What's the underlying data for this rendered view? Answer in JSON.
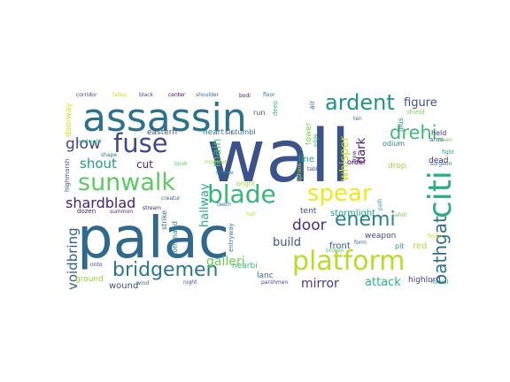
{
  "words": [
    {
      "text": "wall",
      "color": "#3b528b"
    },
    {
      "text": "palac",
      "color": "#31688e"
    },
    {
      "text": "assassin",
      "color": "#2c728e"
    },
    {
      "text": "platform",
      "color": "#b5de2b"
    },
    {
      "text": "citi",
      "color": "#28ae80"
    },
    {
      "text": "spear",
      "color": "#f3e51e"
    },
    {
      "text": "blade",
      "color": "#35b779"
    },
    {
      "text": "sunwalk",
      "color": "#5ec962"
    },
    {
      "text": "fuse",
      "color": "#3e4a89"
    },
    {
      "text": "bridgemen",
      "color": "#2a768e"
    },
    {
      "text": "ardent",
      "color": "#21918c"
    },
    {
      "text": "enemi",
      "color": "#26828e"
    },
    {
      "text": "drehi",
      "color": "#3fbc73"
    },
    {
      "text": "oathgat",
      "color": "#2e6f8e"
    },
    {
      "text": "door",
      "color": "#472c7a"
    },
    {
      "text": "glow",
      "color": "#414487"
    },
    {
      "text": "shout",
      "color": "#1f9e89"
    },
    {
      "text": "shardblad",
      "color": "#482173"
    },
    {
      "text": "voidbring",
      "color": "#33638d"
    },
    {
      "text": "mirror",
      "color": "#443983"
    },
    {
      "text": "galleri",
      "color": "#6ccd5a"
    },
    {
      "text": "build",
      "color": "#3a548c"
    },
    {
      "text": "attack",
      "color": "#2db27d"
    },
    {
      "text": "whisper",
      "color": "#c8e020"
    },
    {
      "text": "hallway",
      "color": "#25ac82"
    },
    {
      "text": "main",
      "color": "#4ac16d"
    },
    {
      "text": "dark",
      "color": "#481a6c"
    },
    {
      "text": "figure",
      "color": "#3b528b"
    },
    {
      "text": "cut",
      "color": "#482878"
    },
    {
      "text": "front",
      "color": "#38588c"
    },
    {
      "text": "red",
      "color": "#addc30"
    },
    {
      "text": "wound",
      "color": "#3d4e8a"
    },
    {
      "text": "stormlight",
      "color": "#1fa088"
    },
    {
      "text": "highlord",
      "color": "#433e85"
    },
    {
      "text": "eastern",
      "color": "#3a538b"
    },
    {
      "text": "heart",
      "color": "#27808e"
    },
    {
      "text": "sir",
      "color": "#453882"
    },
    {
      "text": "stumbl",
      "color": "#2f6c8e"
    },
    {
      "text": "line",
      "color": "#21a685"
    },
    {
      "text": "tent",
      "color": "#404688"
    },
    {
      "text": "drop",
      "color": "#9fda3a"
    },
    {
      "text": "order",
      "color": "#440154"
    },
    {
      "text": "weapon",
      "color": "#3e4989"
    },
    {
      "text": "pit",
      "color": "#20928c"
    },
    {
      "text": "dead",
      "color": "#472d7b"
    },
    {
      "text": "held",
      "color": "#453581"
    },
    {
      "text": "lanc",
      "color": "#31678e"
    },
    {
      "text": "ground",
      "color": "#90d743"
    },
    {
      "text": "nearbi",
      "color": "#3dbc74"
    },
    {
      "text": "doorway",
      "color": "#d8e219"
    },
    {
      "text": "tower",
      "color": "#7ad151"
    },
    {
      "text": "air",
      "color": "#2a778e"
    },
    {
      "text": "deep",
      "color": "#38b977"
    },
    {
      "text": "run",
      "color": "#3e4c8a"
    },
    {
      "text": "odium",
      "color": "#287c8e"
    },
    {
      "text": "illus",
      "color": "#21918c"
    },
    {
      "text": "armi",
      "color": "#39568c"
    },
    {
      "text": "queen",
      "color": "#5ec962"
    },
    {
      "text": "fight",
      "color": "#1f998a"
    },
    {
      "text": "shield",
      "color": "#7fd34e"
    },
    {
      "text": "surgeon",
      "color": "#2c738e"
    },
    {
      "text": "strike",
      "color": "#2c728e"
    },
    {
      "text": "command",
      "color": "#23898e"
    },
    {
      "text": "entryway",
      "color": "#2a778e"
    },
    {
      "text": "bright",
      "color": "#a2da37"
    },
    {
      "text": "hall",
      "color": "#c5e021"
    },
    {
      "text": "dozen",
      "color": "#481a6c"
    },
    {
      "text": "summon",
      "color": "#481f70"
    },
    {
      "text": "stream",
      "color": "#482576"
    },
    {
      "text": "shape",
      "color": "#2a788e"
    },
    {
      "text": "midnight",
      "color": "#26ad81"
    },
    {
      "text": "corridor",
      "color": "#3e4a89"
    },
    {
      "text": "fallen",
      "color": "#d0e11c"
    },
    {
      "text": "black",
      "color": "#3b528b"
    },
    {
      "text": "center",
      "color": "#440154"
    },
    {
      "text": "shoulder",
      "color": "#2d708e"
    },
    {
      "text": "bodi",
      "color": "#481b6d"
    },
    {
      "text": "floor",
      "color": "#287d8e"
    },
    {
      "text": "book",
      "color": "#5ac864"
    },
    {
      "text": "creatur",
      "color": "#38588c"
    },
    {
      "text": "monster",
      "color": "#9bd93c"
    },
    {
      "text": "smoke",
      "color": "#24868e"
    },
    {
      "text": "teeth",
      "color": "#2f6c8e"
    },
    {
      "text": "night",
      "color": "#3a538b"
    },
    {
      "text": "wind",
      "color": "#34618d"
    },
    {
      "text": "onto",
      "color": "#3d4e8a"
    },
    {
      "text": "highmarsh",
      "color": "#3b528b"
    },
    {
      "text": "ten",
      "color": "#2c728e"
    },
    {
      "text": "edge",
      "color": "#40bd72"
    },
    {
      "text": "sphere",
      "color": "#a5db36"
    },
    {
      "text": "tabl",
      "color": "#3a548c"
    },
    {
      "text": "broken",
      "color": "#4ec36b"
    },
    {
      "text": "form",
      "color": "#2e6e8e"
    },
    {
      "text": "grew",
      "color": "#482979"
    },
    {
      "text": "safeti",
      "color": "#6ece58"
    },
    {
      "text": "path",
      "color": "#29af7f"
    },
    {
      "text": "parshmen",
      "color": "#3f4788"
    },
    {
      "text": "formal",
      "color": "#1f968b"
    },
    {
      "text": "finish",
      "color": "#d2e21b"
    }
  ]
}
